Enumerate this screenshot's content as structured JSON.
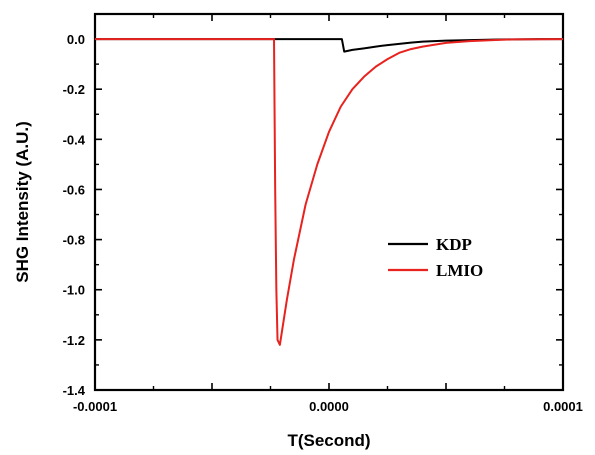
{
  "chart_data": {
    "type": "line",
    "title": "",
    "xlabel": "T(Second)",
    "ylabel": "SHG Intensity (A.U.)",
    "xlim": [
      -0.0001,
      0.0001
    ],
    "ylim": [
      -1.4,
      0.1
    ],
    "x_ticks": [
      -0.0001,
      -5e-05,
      0.0,
      5e-05,
      0.0001
    ],
    "x_tick_labels": [
      "-0.0001",
      "",
      "0.0000",
      "",
      "0.0001"
    ],
    "y_ticks": [
      0.0,
      -0.2,
      -0.4,
      -0.6,
      -0.8,
      -1.0,
      -1.2,
      -1.4
    ],
    "y_tick_labels": [
      "0.0",
      "-0.2",
      "-0.4",
      "-0.6",
      "-0.8",
      "-1.0",
      "-1.2",
      "-1.4"
    ],
    "grid": false,
    "legend_position": "center-right",
    "series": [
      {
        "name": "KDP",
        "color": "#000000",
        "x": [
          -0.0001,
          -4e-05,
          -1e-05,
          2e-06,
          4e-06,
          5.5e-06,
          6.5e-06,
          1e-05,
          1.5e-05,
          2e-05,
          2.5e-05,
          3e-05,
          3.5e-05,
          4e-05,
          5e-05,
          6e-05,
          7e-05,
          8e-05,
          9e-05,
          0.0001
        ],
        "y": [
          0.0,
          0.0,
          0.0,
          0.0,
          0.0,
          0.0,
          -0.05,
          -0.043,
          -0.037,
          -0.03,
          -0.024,
          -0.019,
          -0.014,
          -0.01,
          -0.006,
          -0.004,
          -0.002,
          -0.001,
          0.0,
          0.0
        ]
      },
      {
        "name": "LMIO",
        "color": "#e8221e",
        "x": [
          -0.0001,
          -3e-05,
          -2.35e-05,
          -2.3e-05,
          -2.25e-05,
          -2.2e-05,
          -2.1e-05,
          -2e-05,
          -1.8e-05,
          -1.5e-05,
          -1e-05,
          -5e-06,
          0.0,
          5e-06,
          1e-05,
          1.5e-05,
          2e-05,
          2.5e-05,
          3e-05,
          3.5e-05,
          4e-05,
          5e-05,
          6e-05,
          7e-05,
          8e-05,
          0.0001
        ],
        "y": [
          0.0,
          0.0,
          0.0,
          -0.6,
          -1.0,
          -1.2,
          -1.22,
          -1.16,
          -1.04,
          -0.88,
          -0.66,
          -0.5,
          -0.37,
          -0.27,
          -0.2,
          -0.15,
          -0.11,
          -0.08,
          -0.055,
          -0.04,
          -0.03,
          -0.015,
          -0.008,
          -0.004,
          -0.001,
          0.0
        ]
      }
    ]
  }
}
